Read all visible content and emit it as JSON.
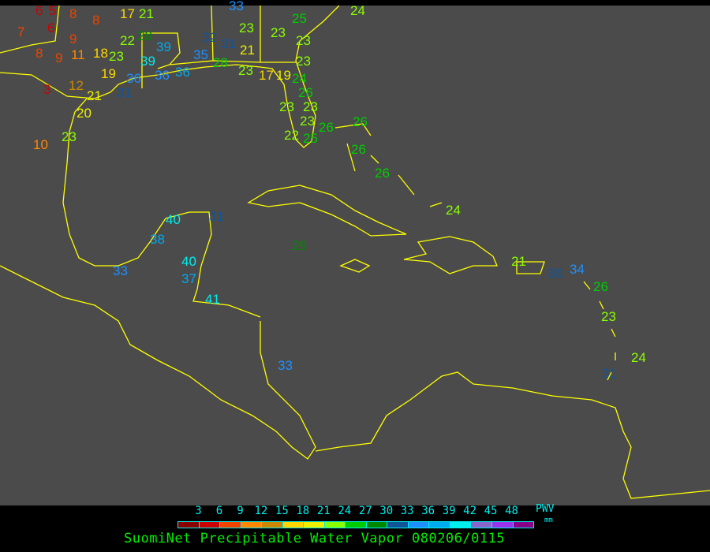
{
  "title": "SuomiNet Precipitable Water Vapor 080206/0115",
  "legend": {
    "unit_label": "PWV",
    "unit": "mm",
    "ticks": [
      "3",
      "6",
      "9",
      "12",
      "15",
      "18",
      "21",
      "24",
      "27",
      "30",
      "33",
      "36",
      "39",
      "42",
      "45",
      "48"
    ],
    "colors": [
      "#8b0000",
      "#cc0000",
      "#ee4400",
      "#ff8800",
      "#cc8800",
      "#ffd700",
      "#eeee00",
      "#88ff00",
      "#00cc00",
      "#008800",
      "#115599",
      "#1e90ff",
      "#00aaee",
      "#00eeee",
      "#8866cc",
      "#9933ee",
      "#880088"
    ]
  },
  "map": {
    "background": "#4b4b4b",
    "coastline_color": "#ffff00",
    "stations": [
      {
        "value": "6",
        "color": "#cc0000"
      },
      {
        "value": "5",
        "color": "#cc0000"
      },
      {
        "value": "8",
        "color": "#ee4400"
      },
      {
        "value": "8",
        "color": "#ee4400"
      },
      {
        "value": "7",
        "color": "#ee4400"
      },
      {
        "value": "6",
        "color": "#cc0000"
      },
      {
        "value": "9",
        "color": "#ee4400"
      },
      {
        "value": "8",
        "color": "#ee4400"
      },
      {
        "value": "9",
        "color": "#ee4400"
      },
      {
        "value": "11",
        "color": "#ff8800"
      },
      {
        "value": "18",
        "color": "#ffd700"
      },
      {
        "value": "23",
        "color": "#88ff00"
      },
      {
        "value": "22",
        "color": "#88ff00"
      },
      {
        "value": "28",
        "color": "#008800"
      },
      {
        "value": "39",
        "color": "#00aaee"
      },
      {
        "value": "39",
        "color": "#00eeee"
      },
      {
        "value": "19",
        "color": "#ffd700"
      },
      {
        "value": "36",
        "color": "#1e90ff"
      },
      {
        "value": "36",
        "color": "#1e90ff"
      },
      {
        "value": "36",
        "color": "#00aaee"
      },
      {
        "value": "31",
        "color": "#115599"
      },
      {
        "value": "12",
        "color": "#cc8800"
      },
      {
        "value": "3",
        "color": "#cc0000"
      },
      {
        "value": "21",
        "color": "#eeee00"
      },
      {
        "value": "20",
        "color": "#eeee00"
      },
      {
        "value": "23",
        "color": "#88ff00"
      },
      {
        "value": "10",
        "color": "#ff8800"
      },
      {
        "value": "17",
        "color": "#ffd700"
      },
      {
        "value": "21",
        "color": "#88ff00"
      },
      {
        "value": "35",
        "color": "#1e90ff"
      },
      {
        "value": "32",
        "color": "#115599"
      },
      {
        "value": "31",
        "color": "#115599"
      },
      {
        "value": "21",
        "color": "#eeee00"
      },
      {
        "value": "23",
        "color": "#88ff00"
      },
      {
        "value": "28",
        "color": "#00cc00"
      },
      {
        "value": "23",
        "color": "#88ff00"
      },
      {
        "value": "17",
        "color": "#ffd700"
      },
      {
        "value": "19",
        "color": "#eeee00"
      },
      {
        "value": "33",
        "color": "#1e90ff"
      },
      {
        "value": "25",
        "color": "#00cc00"
      },
      {
        "value": "23",
        "color": "#88ff00"
      },
      {
        "value": "23",
        "color": "#88ff00"
      },
      {
        "value": "23",
        "color": "#88ff00"
      },
      {
        "value": "24",
        "color": "#00cc00"
      },
      {
        "value": "26",
        "color": "#00cc00"
      },
      {
        "value": "23",
        "color": "#88ff00"
      },
      {
        "value": "23",
        "color": "#88ff00"
      },
      {
        "value": "23",
        "color": "#88ff00"
      },
      {
        "value": "26",
        "color": "#00cc00"
      },
      {
        "value": "22",
        "color": "#88ff00"
      },
      {
        "value": "25",
        "color": "#00cc00"
      },
      {
        "value": "24",
        "color": "#88ff00"
      },
      {
        "value": "26",
        "color": "#00cc00"
      },
      {
        "value": "26",
        "color": "#00cc00"
      },
      {
        "value": "26",
        "color": "#00cc00"
      },
      {
        "value": "24",
        "color": "#88ff00"
      },
      {
        "value": "29",
        "color": "#008800"
      },
      {
        "value": "21",
        "color": "#88ff00"
      },
      {
        "value": "30",
        "color": "#115599"
      },
      {
        "value": "34",
        "color": "#1e90ff"
      },
      {
        "value": "26",
        "color": "#00cc00"
      },
      {
        "value": "23",
        "color": "#88ff00"
      },
      {
        "value": "24",
        "color": "#88ff00"
      },
      {
        "value": "31",
        "color": "#115599"
      },
      {
        "value": "40",
        "color": "#00eeee"
      },
      {
        "value": "31",
        "color": "#115599"
      },
      {
        "value": "38",
        "color": "#00aaee"
      },
      {
        "value": "40",
        "color": "#00eeee"
      },
      {
        "value": "33",
        "color": "#1e90ff"
      },
      {
        "value": "37",
        "color": "#00aaee"
      },
      {
        "value": "41",
        "color": "#00eeee"
      },
      {
        "value": "33",
        "color": "#1e90ff"
      }
    ]
  }
}
